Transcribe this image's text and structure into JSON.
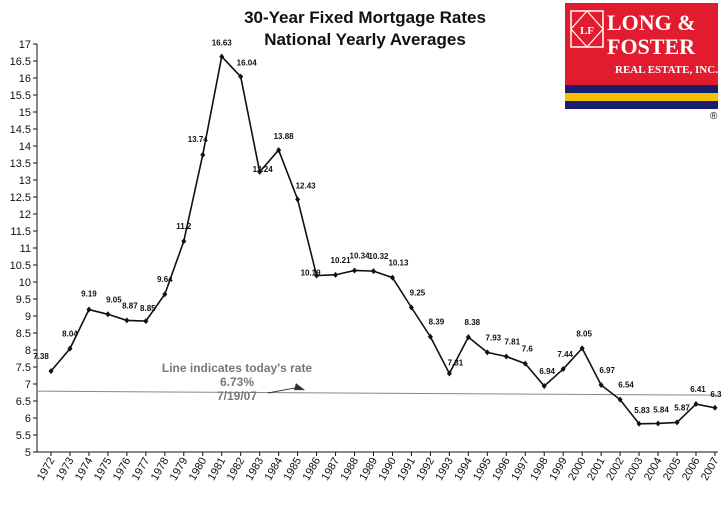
{
  "chart_data": {
    "type": "line",
    "title": "30-Year Fixed Mortgage Rates",
    "subtitle": "National Yearly Averages",
    "xlabel": "",
    "ylabel": "",
    "categories": [
      "1972",
      "1973",
      "1974",
      "1975",
      "1976",
      "1977",
      "1978",
      "1979",
      "1980",
      "1981",
      "1982",
      "1983",
      "1984",
      "1985",
      "1986",
      "1987",
      "1988",
      "1989",
      "1990",
      "1991",
      "1992",
      "1993",
      "1994",
      "1995",
      "1996",
      "1997",
      "1998",
      "1999",
      "2000",
      "2001",
      "2002",
      "2003",
      "2004",
      "2005",
      "2006",
      "2007"
    ],
    "values": [
      7.38,
      8.04,
      9.19,
      9.05,
      8.87,
      8.85,
      9.64,
      11.2,
      13.74,
      16.63,
      16.04,
      13.24,
      13.88,
      12.43,
      10.19,
      10.21,
      10.34,
      10.32,
      10.13,
      9.25,
      8.39,
      7.31,
      8.38,
      7.93,
      7.81,
      7.6,
      6.94,
      7.44,
      8.05,
      6.97,
      6.54,
      5.83,
      5.84,
      5.87,
      6.41,
      6.3
    ],
    "point_labels": [
      "7.38",
      "8.04",
      "9.19",
      "9.05",
      "8.87",
      "8.85",
      "9.64",
      "11.2",
      "13.74",
      "16.63",
      "16.04",
      "13.24",
      "13.88",
      "12.43",
      "10.19",
      "10.21",
      "10.34",
      "10.32",
      "10.13",
      "9.25",
      "8.39",
      "7.31",
      "8.38",
      "7.93",
      "7.81",
      "7.6",
      "6.94",
      "7.44",
      "8.05",
      "6.97",
      "6.54",
      "5.83",
      "5.84",
      "5.87",
      "6.41",
      "6.3"
    ],
    "ylim": [
      5,
      17
    ],
    "yticks": [
      "5",
      "5.5",
      "6",
      "6.5",
      "7",
      "7.5",
      "8",
      "8.5",
      "9",
      "9.5",
      "10",
      "10.5",
      "11",
      "11.5",
      "12",
      "12.5",
      "13",
      "13.5",
      "14",
      "14.5",
      "15",
      "15.5",
      "16",
      "16.5",
      "17"
    ],
    "grid": false,
    "reference_line": {
      "value": 6.73,
      "label_lines": [
        "Line indicates today's rate",
        "6.73%",
        "7/19/07"
      ]
    }
  },
  "logo": {
    "lines": [
      "LONG &",
      "FOSTER",
      "REAL ESTATE, INC."
    ],
    "mark": "LF",
    "registered": "®",
    "colors": {
      "red": "#e31b2e",
      "navy": "#1a1e6e",
      "gold": "#f2c200",
      "white": "#ffffff"
    }
  },
  "colors": {
    "line": "#111111",
    "reference_line": "#888888",
    "annotation": "#777777"
  }
}
